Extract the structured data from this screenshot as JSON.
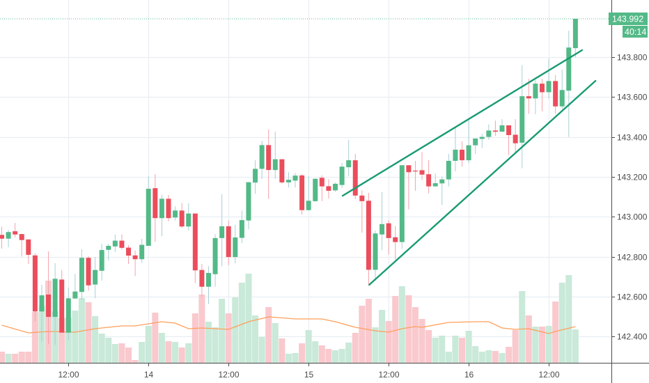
{
  "chart_data": {
    "type": "candlestick",
    "title": "",
    "interval": "1h",
    "ylim": [
      142.28,
      144.08
    ],
    "price_ticks": [
      "143.800",
      "143.600",
      "143.400",
      "143.200",
      "143.000",
      "142.800",
      "142.600",
      "142.400"
    ],
    "time_ticks": [
      {
        "index": 10,
        "label": "12:00"
      },
      {
        "index": 22,
        "label": "14"
      },
      {
        "index": 34,
        "label": "12:00"
      },
      {
        "index": 46,
        "label": "15"
      },
      {
        "index": 58,
        "label": "12:00"
      },
      {
        "index": 70,
        "label": "16"
      },
      {
        "index": 82,
        "label": "12:00"
      }
    ],
    "last_price": {
      "value": 143.992,
      "label": "143.992",
      "countdown": "40:14"
    },
    "colors": {
      "up": "#53b987",
      "down": "#eb4d5c",
      "up_volume": "#c9e9d9",
      "down_volume": "#f9c9ce",
      "volume_ma": "#ff9f5a",
      "trendline": "#199b72",
      "grid": "#e8eef3"
    },
    "candles_ohlcv": [
      [
        142.909,
        142.95,
        142.84,
        142.89,
        16
      ],
      [
        142.89,
        142.934,
        142.847,
        142.923,
        13
      ],
      [
        142.927,
        142.969,
        142.897,
        142.911,
        13
      ],
      [
        142.913,
        142.913,
        142.801,
        142.883,
        16
      ],
      [
        142.886,
        142.886,
        142.763,
        142.809,
        16
      ],
      [
        142.806,
        142.816,
        142.475,
        142.525,
        73
      ],
      [
        142.525,
        142.659,
        142.376,
        142.606,
        82
      ],
      [
        142.61,
        142.826,
        142.362,
        142.498,
        118
      ],
      [
        142.498,
        142.767,
        142.359,
        142.689,
        74
      ],
      [
        142.685,
        142.733,
        142.419,
        142.419,
        64
      ],
      [
        142.419,
        142.645,
        142.383,
        142.591,
        65
      ],
      [
        142.59,
        142.714,
        142.59,
        142.625,
        75
      ],
      [
        142.623,
        142.837,
        142.583,
        142.794,
        93
      ],
      [
        142.794,
        142.803,
        142.63,
        142.656,
        87
      ],
      [
        142.66,
        142.798,
        142.591,
        142.733,
        67
      ],
      [
        142.729,
        142.864,
        142.68,
        142.833,
        42
      ],
      [
        142.834,
        142.864,
        142.781,
        142.854,
        36
      ],
      [
        142.851,
        142.911,
        142.824,
        142.88,
        27
      ],
      [
        142.88,
        142.911,
        142.836,
        142.844,
        28
      ],
      [
        142.845,
        142.857,
        142.763,
        142.805,
        22
      ],
      [
        142.806,
        142.83,
        142.702,
        142.787,
        4
      ],
      [
        142.787,
        142.889,
        142.769,
        142.859,
        30
      ],
      [
        142.854,
        143.202,
        142.854,
        143.14,
        53
      ],
      [
        143.143,
        143.214,
        142.874,
        142.993,
        72
      ],
      [
        142.993,
        143.109,
        142.902,
        143.09,
        43
      ],
      [
        143.09,
        143.109,
        142.977,
        142.993,
        31
      ],
      [
        142.996,
        143.052,
        142.981,
        143.031,
        30
      ],
      [
        143.031,
        143.068,
        142.944,
        142.951,
        22
      ],
      [
        142.951,
        143.068,
        142.93,
        143.016,
        28
      ],
      [
        143.016,
        143.016,
        142.667,
        142.731,
        71
      ],
      [
        142.733,
        142.763,
        142.597,
        142.649,
        98
      ],
      [
        142.649,
        142.752,
        142.562,
        142.718,
        59
      ],
      [
        142.712,
        142.912,
        142.649,
        142.893,
        51
      ],
      [
        142.893,
        143.112,
        142.751,
        142.952,
        92
      ],
      [
        142.952,
        142.981,
        142.757,
        142.798,
        71
      ],
      [
        142.798,
        142.959,
        142.766,
        142.896,
        94
      ],
      [
        142.894,
        143.031,
        142.868,
        142.983,
        115
      ],
      [
        142.981,
        143.173,
        142.937,
        143.173,
        128
      ],
      [
        143.171,
        143.283,
        143.115,
        143.24,
        68
      ],
      [
        143.24,
        143.38,
        143.19,
        143.359,
        37
      ],
      [
        143.359,
        143.437,
        143.089,
        143.234,
        80
      ],
      [
        143.234,
        143.426,
        143.19,
        143.288,
        57
      ],
      [
        143.288,
        143.288,
        143.166,
        143.172,
        35
      ],
      [
        143.172,
        143.223,
        143.146,
        143.185,
        13
      ],
      [
        143.181,
        143.219,
        143.146,
        143.206,
        14
      ],
      [
        143.207,
        143.213,
        143.011,
        143.033,
        28
      ],
      [
        143.033,
        143.202,
        143.031,
        143.08,
        47
      ],
      [
        143.078,
        143.192,
        143.075,
        143.19,
        31
      ],
      [
        143.195,
        143.207,
        143.078,
        143.152,
        25
      ],
      [
        143.153,
        143.188,
        143.091,
        143.13,
        20
      ],
      [
        143.132,
        143.171,
        143.125,
        143.165,
        18
      ],
      [
        143.159,
        143.269,
        143.144,
        143.251,
        20
      ],
      [
        143.248,
        143.385,
        143.204,
        143.283,
        29
      ],
      [
        143.283,
        143.315,
        143.089,
        143.106,
        43
      ],
      [
        143.106,
        143.132,
        142.92,
        143.078,
        82
      ],
      [
        143.08,
        143.12,
        142.655,
        142.734,
        92
      ],
      [
        142.734,
        142.93,
        142.678,
        142.916,
        51
      ],
      [
        142.911,
        143.124,
        142.833,
        142.963,
        76
      ],
      [
        142.967,
        142.984,
        142.81,
        142.893,
        60
      ],
      [
        142.897,
        142.954,
        142.785,
        142.873,
        96
      ],
      [
        142.873,
        143.258,
        142.839,
        143.258,
        110
      ],
      [
        143.258,
        143.258,
        143.037,
        143.223,
        97
      ],
      [
        143.231,
        143.28,
        143.13,
        143.227,
        80
      ],
      [
        143.233,
        143.324,
        143.184,
        143.211,
        63
      ],
      [
        143.213,
        143.283,
        143.117,
        143.152,
        47
      ],
      [
        143.152,
        143.217,
        143.152,
        143.168,
        36
      ],
      [
        143.167,
        143.202,
        143.059,
        143.187,
        39
      ],
      [
        143.187,
        143.315,
        143.152,
        143.28,
        16
      ],
      [
        143.28,
        143.452,
        143.227,
        143.336,
        39
      ],
      [
        143.336,
        143.377,
        143.251,
        143.283,
        36
      ],
      [
        143.283,
        143.487,
        143.268,
        143.358,
        46
      ],
      [
        143.358,
        143.392,
        143.313,
        143.392,
        24
      ],
      [
        143.39,
        143.415,
        143.345,
        143.4,
        16
      ],
      [
        143.4,
        143.463,
        143.386,
        143.432,
        18
      ],
      [
        143.432,
        143.482,
        143.405,
        143.426,
        17
      ],
      [
        143.426,
        143.489,
        143.426,
        143.458,
        14
      ],
      [
        143.458,
        143.458,
        143.309,
        143.409,
        23
      ],
      [
        143.411,
        143.489,
        143.321,
        143.368,
        47
      ],
      [
        143.371,
        143.76,
        143.243,
        143.604,
        103
      ],
      [
        143.604,
        143.691,
        143.516,
        143.593,
        68
      ],
      [
        143.593,
        143.685,
        143.514,
        143.667,
        52
      ],
      [
        143.667,
        143.691,
        143.528,
        143.624,
        52
      ],
      [
        143.624,
        143.793,
        143.592,
        143.68,
        53
      ],
      [
        143.68,
        143.709,
        143.516,
        143.553,
        88
      ],
      [
        143.553,
        143.737,
        143.539,
        143.635,
        115
      ],
      [
        143.632,
        143.932,
        143.4,
        143.848,
        126
      ],
      [
        143.845,
        143.992,
        143.8,
        143.992,
        48
      ]
    ],
    "volume_ma": [
      [
        0,
        54
      ],
      [
        4,
        43
      ],
      [
        7,
        45
      ],
      [
        11,
        44
      ],
      [
        14,
        49
      ],
      [
        18,
        53
      ],
      [
        20,
        53
      ],
      [
        24,
        59
      ],
      [
        26,
        57
      ],
      [
        28,
        49
      ],
      [
        30,
        50
      ],
      [
        34,
        48
      ],
      [
        37,
        59
      ],
      [
        40,
        66
      ],
      [
        44,
        63
      ],
      [
        48,
        63
      ],
      [
        50,
        59
      ],
      [
        53,
        51
      ],
      [
        56,
        46
      ],
      [
        58,
        44
      ],
      [
        60,
        49
      ],
      [
        62,
        52
      ],
      [
        63,
        51
      ],
      [
        67,
        58
      ],
      [
        71,
        59
      ],
      [
        73,
        59
      ],
      [
        75,
        50
      ],
      [
        77,
        48
      ],
      [
        79,
        49
      ],
      [
        82,
        42
      ],
      [
        83,
        45
      ],
      [
        86,
        52
      ]
    ],
    "trendlines": [
      {
        "name": "upper",
        "from": [
          51.1,
          143.105
        ],
        "to": [
          87.0,
          143.835
        ]
      },
      {
        "name": "lower",
        "from": [
          55.1,
          142.659
        ],
        "to": [
          89.0,
          143.681
        ]
      }
    ]
  }
}
